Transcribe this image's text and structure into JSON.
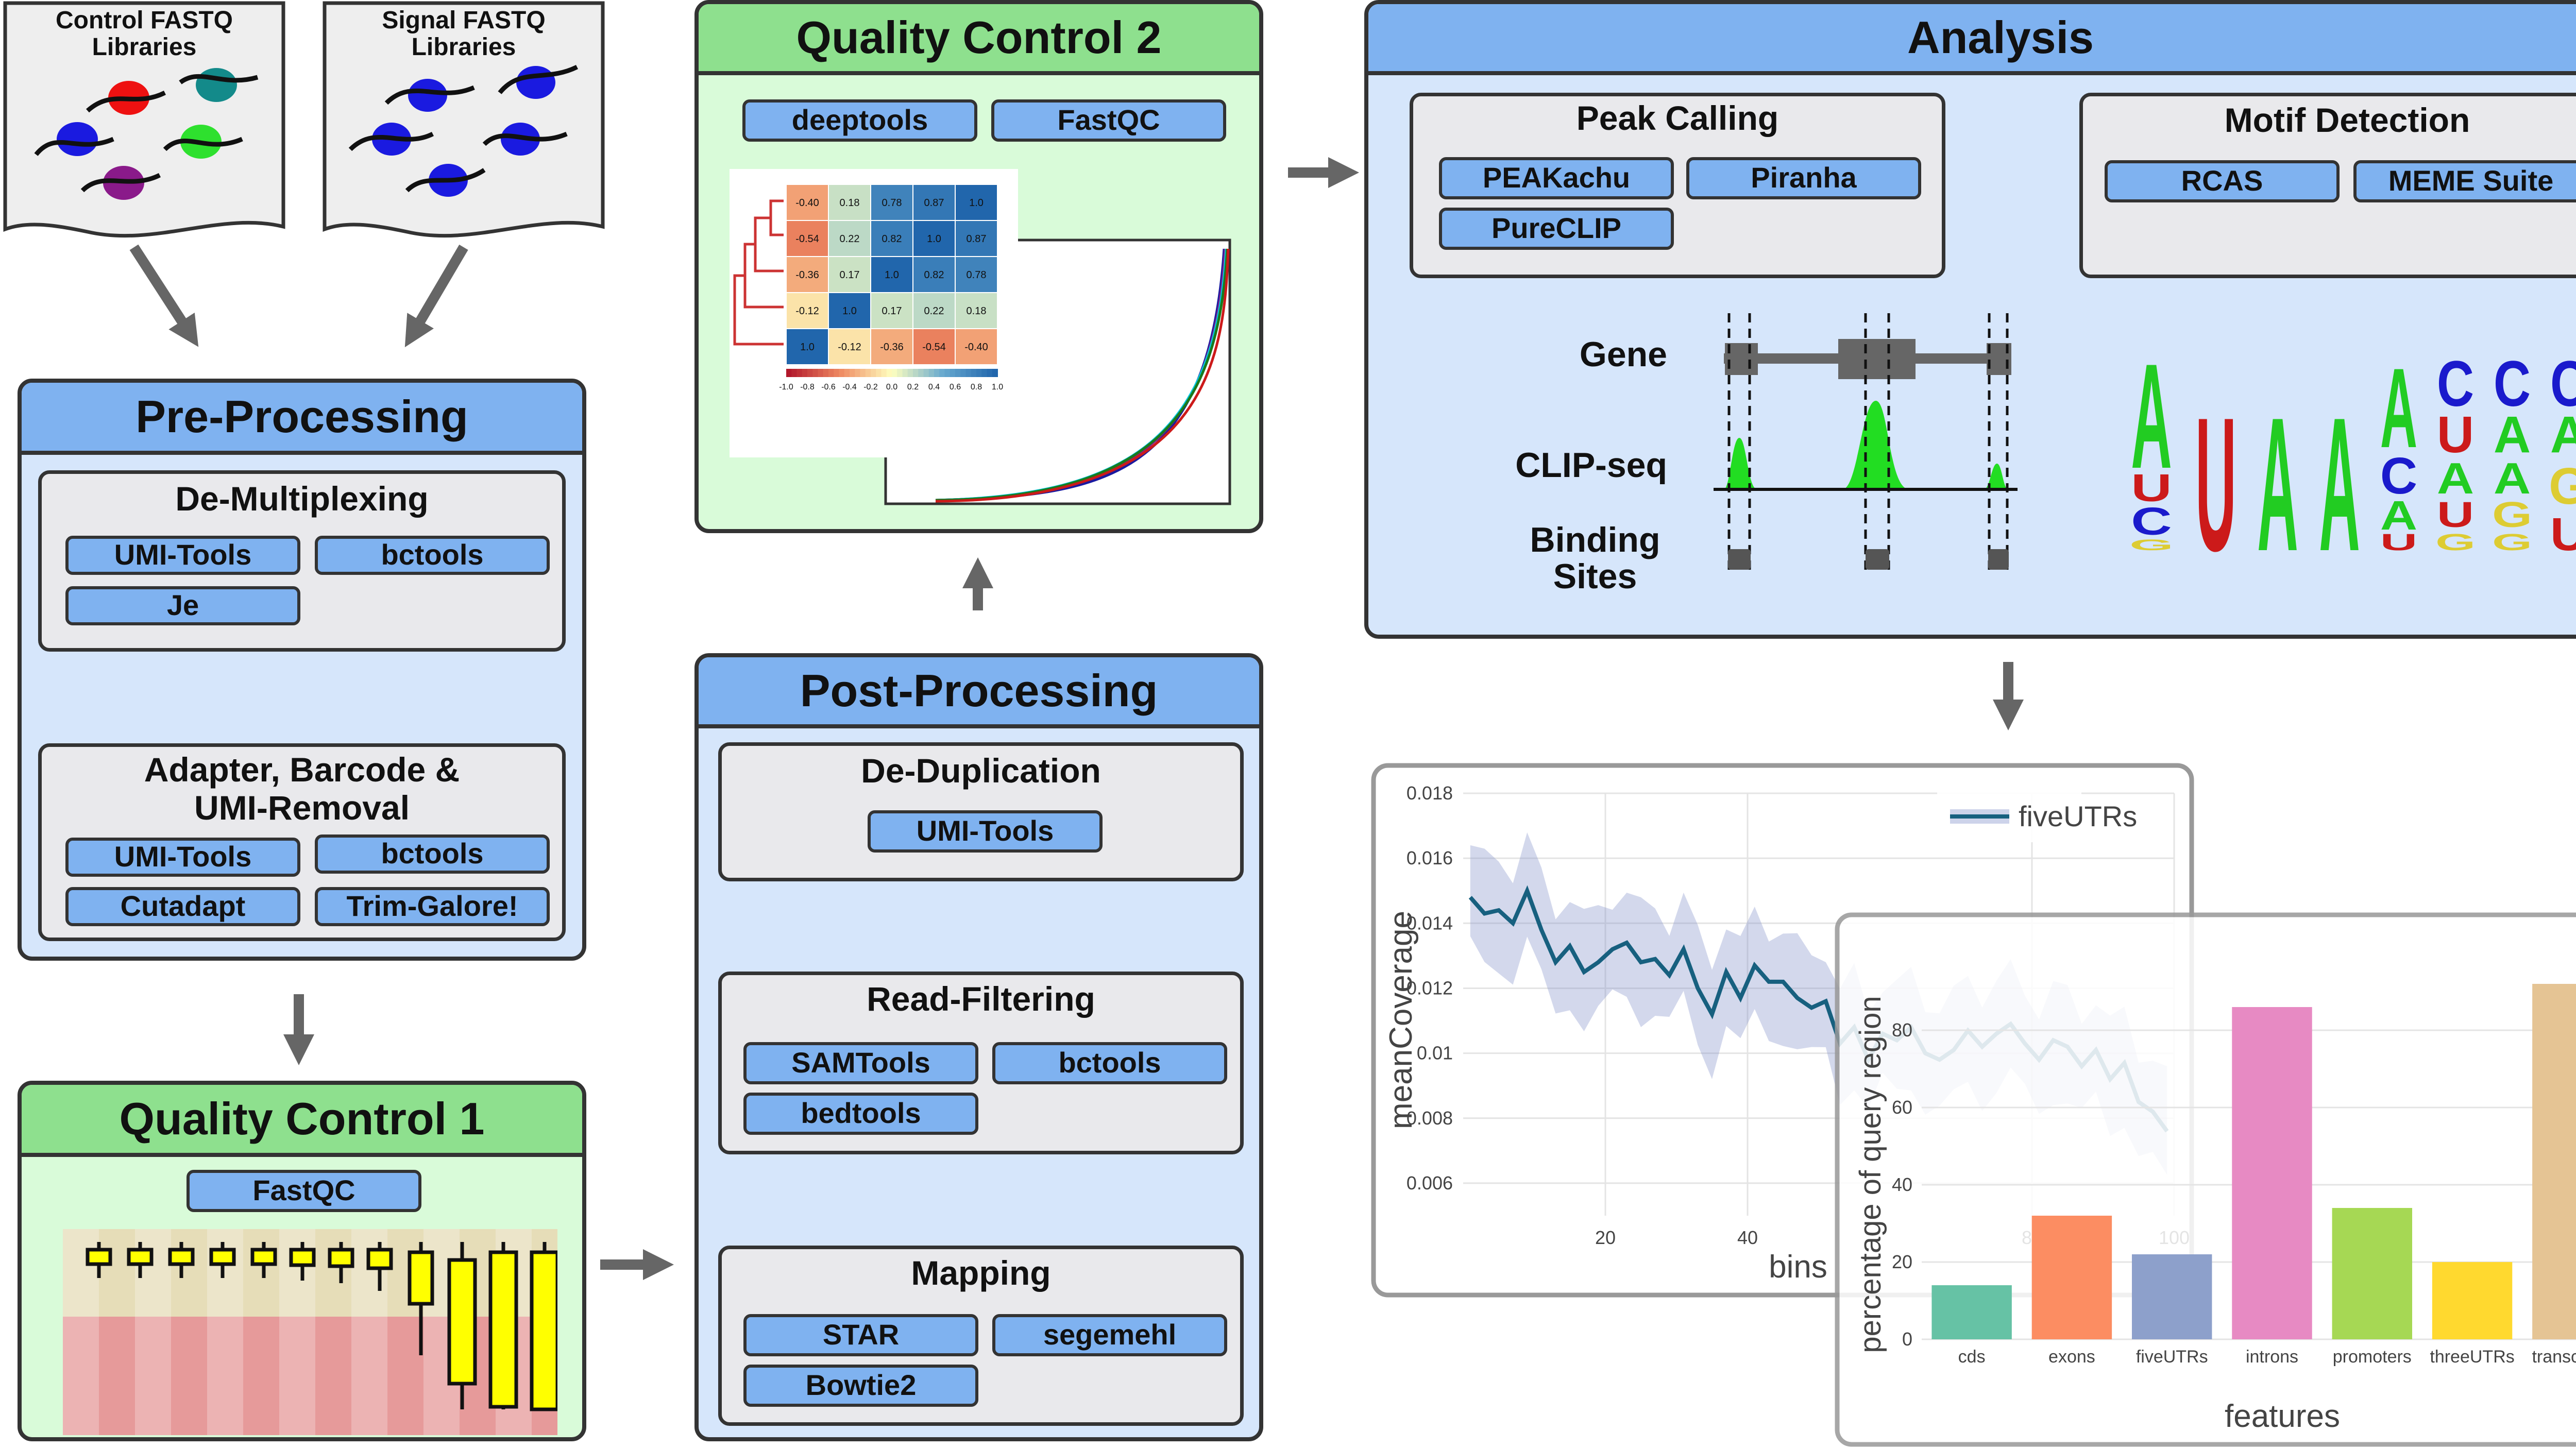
{
  "inputs": {
    "control_title": "Control FASTQ\nLibraries",
    "signal_title": "Signal FASTQ\nLibraries"
  },
  "preprocessing": {
    "title": "Pre-Processing",
    "demultiplexing": {
      "title": "De-Multiplexing",
      "tools": [
        "UMI-Tools",
        "bctools",
        "Je"
      ]
    },
    "adapter_removal": {
      "title": "Adapter, Barcode &\nUMI-Removal",
      "tools": [
        "UMI-Tools",
        "bctools",
        "Cutadapt",
        "Trim-Galore!"
      ]
    }
  },
  "qc1": {
    "title": "Quality Control 1",
    "tools": [
      "FastQC"
    ]
  },
  "qc2": {
    "title": "Quality Control 2",
    "tools": [
      "deeptools",
      "FastQC"
    ],
    "heatmap_values": [
      [
        "-0.40",
        "0.18",
        "0.78",
        "0.87",
        "1.0"
      ],
      [
        "-0.54",
        "0.22",
        "0.82",
        "1.0",
        "0.87"
      ],
      [
        "-0.36",
        "0.17",
        "1.0",
        "0.82",
        "0.78"
      ],
      [
        "-0.12",
        "1.0",
        "0.17",
        "0.22",
        "0.18"
      ],
      [
        "1.0",
        "-0.12",
        "-0.36",
        "-0.54",
        "-0.40"
      ]
    ],
    "colorbar_ticks": [
      "-1.0",
      "-0.8",
      "-0.6",
      "-0.4",
      "-0.2",
      "0.0",
      "0.2",
      "0.4",
      "0.6",
      "0.8",
      "1.0"
    ]
  },
  "postprocessing": {
    "title": "Post-Processing",
    "deduplication": {
      "title": "De-Duplication",
      "tools": [
        "UMI-Tools"
      ]
    },
    "read_filtering": {
      "title": "Read-Filtering",
      "tools": [
        "SAMTools",
        "bctools",
        "bedtools"
      ]
    },
    "mapping": {
      "title": "Mapping",
      "tools": [
        "STAR",
        "segemehl",
        "Bowtie2"
      ]
    }
  },
  "analysis": {
    "title": "Analysis",
    "peak_calling": {
      "title": "Peak Calling",
      "tools": [
        "PEAKachu",
        "Piranha",
        "PureCLIP"
      ]
    },
    "motif_detection": {
      "title": "Motif Detection",
      "tools": [
        "RCAS",
        "MEME Suite"
      ]
    },
    "track_labels": {
      "gene": "Gene",
      "clip": "CLIP-seq",
      "binding": "Binding\nSites"
    }
  },
  "colors": {
    "blue_header": "#7fb2f0",
    "green_header": "#8ee08e",
    "blue_body": "#d6e6fb",
    "green_body": "#d9fbd9",
    "chip": "#7fb2f0",
    "sub_box": "#e9e9ec",
    "arrow": "#666666",
    "peak_green": "#22dd22"
  },
  "chart_data": [
    {
      "type": "line",
      "title": "",
      "xlabel": "bins",
      "ylabel": "meanCoverage",
      "legend": [
        "fiveUTRs"
      ],
      "legend_position": "top-right",
      "xlim": [
        0,
        100
      ],
      "ylim": [
        0.005,
        0.018
      ],
      "x_ticks": [
        "20",
        "40",
        "80",
        "100"
      ],
      "y_ticks": [
        "0.006",
        "0.008",
        "0.01",
        "0.012",
        "0.014",
        "0.016",
        "0.018"
      ],
      "series": [
        {
          "name": "fiveUTRs",
          "x": [
            1,
            3,
            5,
            7,
            9,
            11,
            13,
            15,
            17,
            19,
            21,
            23,
            25,
            27,
            29,
            31,
            33,
            35,
            37,
            39,
            41,
            43,
            45,
            47,
            49,
            51,
            53,
            55,
            57,
            59,
            61,
            63,
            65,
            67,
            69,
            71,
            73,
            75,
            77,
            79,
            81,
            83,
            85,
            87,
            89,
            91,
            93,
            95,
            97,
            99
          ],
          "values": [
            0.0148,
            0.0143,
            0.0144,
            0.014,
            0.015,
            0.0138,
            0.0128,
            0.0133,
            0.0125,
            0.0128,
            0.0132,
            0.0134,
            0.0128,
            0.0129,
            0.0124,
            0.0132,
            0.012,
            0.0112,
            0.0125,
            0.0117,
            0.0127,
            0.0122,
            0.0122,
            0.0117,
            0.0114,
            0.0116,
            0.0103,
            0.0108,
            0.0098,
            0.0106,
            0.0104,
            0.0108,
            0.01,
            0.0098,
            0.0101,
            0.0107,
            0.0102,
            0.0106,
            0.0109,
            0.0103,
            0.0098,
            0.0104,
            0.0102,
            0.0096,
            0.0101,
            0.0092,
            0.0097,
            0.0085,
            0.0082,
            0.0076
          ],
          "band_width": 0.0016
        }
      ]
    },
    {
      "type": "bar",
      "title": "",
      "xlabel": "features",
      "ylabel": "percentage of query region",
      "ylim": [
        0,
        100
      ],
      "y_ticks": [
        "0",
        "20",
        "40",
        "60",
        "80"
      ],
      "categories": [
        "cds",
        "exons",
        "fiveUTRs",
        "introns",
        "promoters",
        "threeUTRs",
        "transcripts"
      ],
      "values": [
        14,
        32,
        22,
        86,
        34,
        20,
        92
      ],
      "bar_colors": [
        "#66c2a5",
        "#fc8d62",
        "#8da0cb",
        "#e78ac3",
        "#a6d854",
        "#ffd92f",
        "#e5c494"
      ]
    }
  ]
}
